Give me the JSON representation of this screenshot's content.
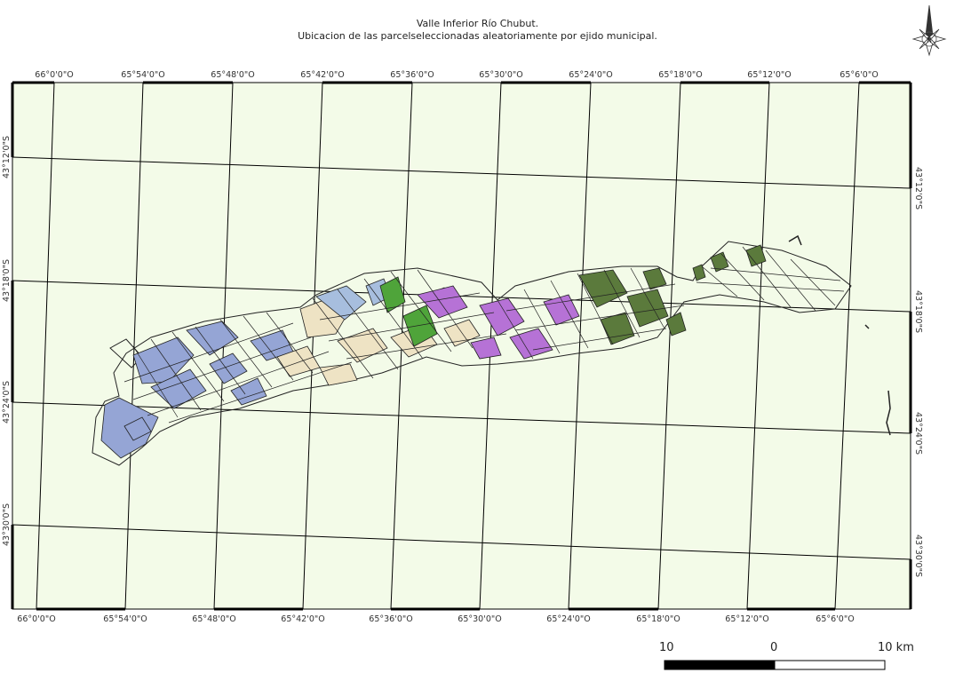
{
  "title_line1": "Valle Inferior Río Chubut.",
  "title_line2": "Ubicacion de las parcelseleccionadas aleatoriamente por ejido municipal.",
  "north_arrow": {
    "label": "N",
    "icon": "compass-rose-icon"
  },
  "top_labels": [
    "66°0'0\"O",
    "65°54'0\"O",
    "65°48'0\"O",
    "65°42'0\"O",
    "65°36'0\"O",
    "65°30'0\"O",
    "65°24'0\"O",
    "65°18'0\"O",
    "65°12'0\"O",
    "65°6'0\"O"
  ],
  "bottom_labels": [
    "66°0'0\"O",
    "65°54'0\"O",
    "65°48'0\"O",
    "65°42'0\"O",
    "65°36'0\"O",
    "65°30'0\"O",
    "65°24'0\"O",
    "65°18'0\"O",
    "65°12'0\"O",
    "65°6'0\"O"
  ],
  "left_labels": [
    "43°12'0\"S",
    "43°18'0\"S",
    "43°24'0\"S",
    "43°30'0\"S"
  ],
  "right_labels": [
    "43°12'0\"S",
    "43°18'0\"S",
    "43°24'0\"S",
    "43°30'0\"S"
  ],
  "scale": {
    "left": "10",
    "mid": "0",
    "right": "10 km"
  },
  "colors": {
    "map_bg": "#f3fbe8",
    "ejido_1": "#95a5d5",
    "ejido_2": "#eee3c4",
    "ejido_3": "#a7bede",
    "ejido_4": "#4fa43a",
    "ejido_5": "#b672d6",
    "ejido_6": "#5b7a3c"
  }
}
